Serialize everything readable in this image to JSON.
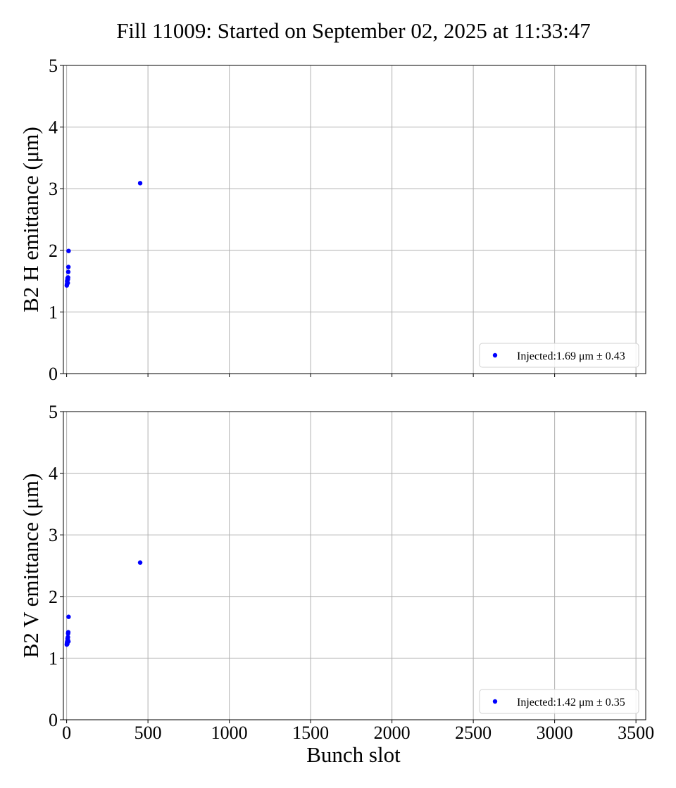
{
  "chart_data": {
    "type": "scatter",
    "title": "Fill 11009: Started on September 02, 2025 at 11:33:47",
    "xlabel": "Bunch slot",
    "xlim": [
      -20,
      3560
    ],
    "xticks": [
      "0",
      "500",
      "1000",
      "1500",
      "2000",
      "2500",
      "3000",
      "3500"
    ],
    "xtick_values": [
      0,
      500,
      1000,
      1500,
      2000,
      2500,
      3000,
      3500
    ],
    "grid": true,
    "marker_color": "#0000ff",
    "panels": [
      {
        "ylabel": "B2 H emittance (μm)",
        "ylim": [
          0,
          5
        ],
        "yticks": [
          "0",
          "1",
          "2",
          "3",
          "4",
          "5"
        ],
        "ytick_values": [
          0,
          1,
          2,
          3,
          4,
          5
        ],
        "legend_position": "lower-right",
        "series": [
          {
            "name": "Injected:1.69 μm ± 0.43",
            "x": [
              1,
              2,
              3,
              4,
              5,
              6,
              7,
              8,
              9,
              10,
              11,
              12,
              452
            ],
            "y": [
              1.43,
              1.45,
              1.5,
              1.48,
              1.52,
              1.55,
              1.47,
              1.53,
              1.56,
              1.65,
              1.73,
              1.99,
              3.09
            ]
          }
        ]
      },
      {
        "ylabel": "B2 V emittance (μm)",
        "ylim": [
          0,
          5
        ],
        "yticks": [
          "0",
          "1",
          "2",
          "3",
          "4",
          "5"
        ],
        "ytick_values": [
          0,
          1,
          2,
          3,
          4,
          5
        ],
        "legend_position": "lower-right",
        "series": [
          {
            "name": "Injected:1.42 μm ± 0.35",
            "x": [
              1,
              2,
              3,
              4,
              5,
              6,
              7,
              8,
              9,
              10,
              11,
              12,
              452
            ],
            "y": [
              1.22,
              1.24,
              1.26,
              1.23,
              1.28,
              1.32,
              1.3,
              1.34,
              1.4,
              1.42,
              1.27,
              1.67,
              2.55
            ]
          }
        ]
      }
    ]
  }
}
